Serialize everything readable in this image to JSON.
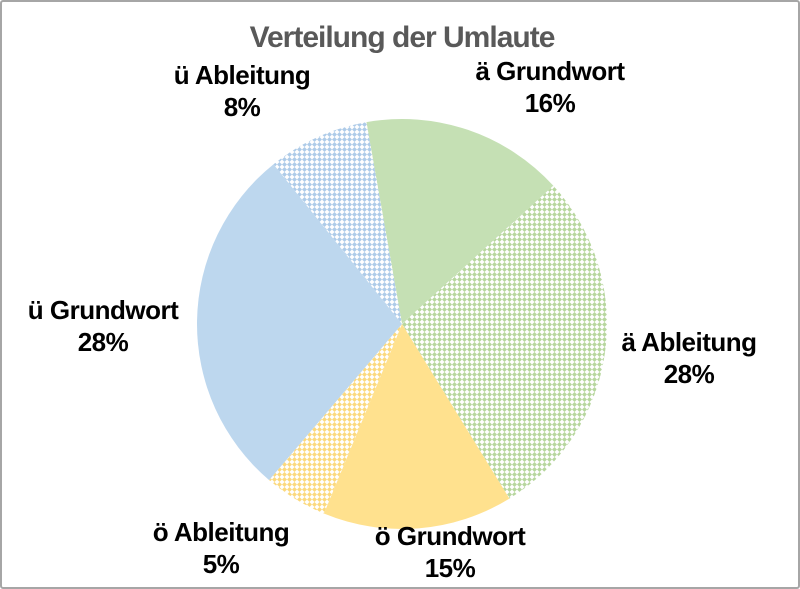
{
  "page": {
    "background": "#ffffff",
    "border_color": "#a6a6a6"
  },
  "chart_data": {
    "type": "pie",
    "title": "Verteilung der Umlaute",
    "title_color": "#595959",
    "label_color": "#000000",
    "legend_position": "none",
    "labels_position": "outside",
    "direction": "clockwise",
    "start_angle_deg": -10,
    "slices": [
      {
        "label": "ä Grundwort",
        "value": 16,
        "pct_label": "16%",
        "fill": "solid",
        "color": "#c5e0b4"
      },
      {
        "label": "ä Ableitung",
        "value": 28,
        "pct_label": "28%",
        "fill": "dotted",
        "color": "#c5e0b4",
        "dot_color": "#b7d69e"
      },
      {
        "label": "ö Grundwort",
        "value": 15,
        "pct_label": "15%",
        "fill": "solid",
        "color": "#ffe18e"
      },
      {
        "label": "ö Ableitung",
        "value": 5,
        "pct_label": "5%",
        "fill": "dotted",
        "color": "#ffe18e",
        "dot_color": "#fbd97e"
      },
      {
        "label": "ü Grundwort",
        "value": 28,
        "pct_label": "28%",
        "fill": "solid",
        "color": "#bdd7ee"
      },
      {
        "label": "ü Ableitung",
        "value": 8,
        "pct_label": "8%",
        "fill": "dotted",
        "color": "#bdd7ee",
        "dot_color": "#aecbe8"
      }
    ]
  }
}
